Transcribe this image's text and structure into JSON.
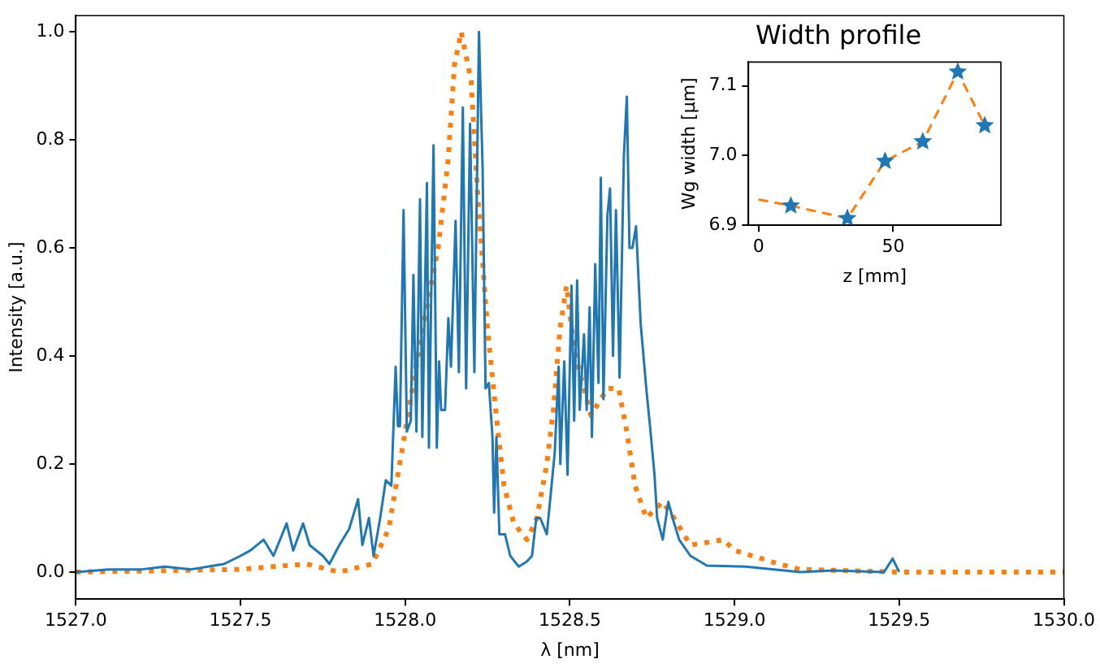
{
  "chart_data": [
    {
      "type": "line",
      "xlabel": "λ [nm]",
      "ylabel": "Intensity [a.u.]",
      "xlim": [
        1527,
        1530
      ],
      "ylim": [
        -0.05,
        1.03
      ],
      "xticks": [
        {
          "value": 1527,
          "label": "1527.0"
        },
        {
          "value": 1527.5,
          "label": "1527.5"
        },
        {
          "value": 1528,
          "label": "1528.0"
        },
        {
          "value": 1528.5,
          "label": "1528.5"
        },
        {
          "value": 1529,
          "label": "1529.0"
        },
        {
          "value": 1529.5,
          "label": "1529.5"
        },
        {
          "value": 1530,
          "label": "1530.0"
        }
      ],
      "yticks": [
        {
          "value": 0,
          "label": "0.0"
        },
        {
          "value": 0.2,
          "label": "0.2"
        },
        {
          "value": 0.4,
          "label": "0.4"
        },
        {
          "value": 0.6,
          "label": "0.6"
        },
        {
          "value": 0.8,
          "label": "0.8"
        },
        {
          "value": 1,
          "label": "1.0"
        }
      ],
      "grid": false,
      "legend": false,
      "series": [
        {
          "color": "#1f77b4",
          "line_style": "solid",
          "x": [
            1527.0,
            1527.1,
            1527.2,
            1527.27,
            1527.35,
            1527.45,
            1527.5,
            1527.53,
            1527.57,
            1527.6,
            1527.64,
            1527.66,
            1527.69,
            1527.71,
            1527.75,
            1527.77,
            1527.8,
            1527.83,
            1527.857,
            1527.87,
            1527.89,
            1527.904,
            1527.924,
            1527.941,
            1527.958,
            1527.971,
            1527.978,
            1527.984,
            1527.995,
            1528.005,
            1528.017,
            1528.025,
            1528.034,
            1528.045,
            1528.052,
            1528.066,
            1528.072,
            1528.086,
            1528.096,
            1528.103,
            1528.109,
            1528.121,
            1528.131,
            1528.139,
            1528.153,
            1528.163,
            1528.175,
            1528.185,
            1528.197,
            1528.21,
            1528.224,
            1528.235,
            1528.244,
            1528.254,
            1528.265,
            1528.27,
            1528.277,
            1528.286,
            1528.303,
            1528.319,
            1528.345,
            1528.37,
            1528.385,
            1528.398,
            1528.41,
            1528.43,
            1528.454,
            1528.466,
            1528.471,
            1528.483,
            1528.493,
            1528.505,
            1528.513,
            1528.522,
            1528.53,
            1528.543,
            1528.551,
            1528.56,
            1528.567,
            1528.577,
            1528.587,
            1528.594,
            1528.602,
            1528.614,
            1528.622,
            1528.631,
            1528.64,
            1528.651,
            1528.664,
            1528.673,
            1528.681,
            1528.69,
            1528.701,
            1528.715,
            1528.732,
            1528.745,
            1528.757,
            1528.765,
            1528.782,
            1528.799,
            1528.812,
            1528.832,
            1528.866,
            1528.916,
            1529.034,
            1529.2,
            1529.3,
            1529.454,
            1529.48,
            1529.5
          ],
          "values": [
            0.0,
            0.005,
            0.005,
            0.01,
            0.005,
            0.015,
            0.03,
            0.04,
            0.06,
            0.03,
            0.09,
            0.04,
            0.09,
            0.05,
            0.03,
            0.015,
            0.05,
            0.08,
            0.135,
            0.05,
            0.1,
            0.03,
            0.1,
            0.17,
            0.16,
            0.38,
            0.27,
            0.27,
            0.67,
            0.26,
            0.28,
            0.55,
            0.26,
            0.69,
            0.25,
            0.72,
            0.23,
            0.79,
            0.23,
            0.39,
            0.3,
            0.3,
            0.47,
            0.38,
            0.65,
            0.37,
            0.86,
            0.34,
            0.83,
            0.37,
            1.0,
            0.75,
            0.34,
            0.35,
            0.25,
            0.11,
            0.25,
            0.07,
            0.07,
            0.03,
            0.01,
            0.02,
            0.03,
            0.1,
            0.1,
            0.07,
            0.22,
            0.38,
            0.2,
            0.39,
            0.18,
            0.53,
            0.28,
            0.54,
            0.3,
            0.44,
            0.3,
            0.49,
            0.25,
            0.57,
            0.35,
            0.73,
            0.32,
            0.66,
            0.71,
            0.4,
            0.67,
            0.36,
            0.77,
            0.88,
            0.6,
            0.6,
            0.64,
            0.46,
            0.34,
            0.26,
            0.18,
            0.1,
            0.06,
            0.13,
            0.1,
            0.06,
            0.03,
            0.012,
            0.01,
            0.0,
            0.003,
            0.0,
            0.025,
            0.0
          ]
        },
        {
          "color": "#ff7f0e",
          "line_style": "dotted",
          "x": [
            1527.0,
            1527.5,
            1527.7,
            1527.8,
            1527.9,
            1527.95,
            1528.0,
            1528.05,
            1528.1,
            1528.13,
            1528.15,
            1528.17,
            1528.2,
            1528.22,
            1528.25,
            1528.28,
            1528.3,
            1528.33,
            1528.37,
            1528.4,
            1528.43,
            1528.45,
            1528.47,
            1528.49,
            1528.513,
            1528.53,
            1528.564,
            1528.614,
            1528.648,
            1528.673,
            1528.698,
            1528.732,
            1528.782,
            1528.816,
            1528.866,
            1528.967,
            1529.0,
            1529.135,
            1529.2,
            1529.5,
            1530.0
          ],
          "values": [
            0.0,
            0.005,
            0.015,
            0.0,
            0.015,
            0.08,
            0.26,
            0.44,
            0.6,
            0.76,
            0.94,
            1.0,
            0.91,
            0.7,
            0.45,
            0.27,
            0.16,
            0.09,
            0.06,
            0.1,
            0.2,
            0.3,
            0.45,
            0.53,
            0.41,
            0.37,
            0.29,
            0.34,
            0.34,
            0.26,
            0.16,
            0.1,
            0.13,
            0.1,
            0.05,
            0.06,
            0.04,
            0.015,
            0.005,
            0.0,
            0.0
          ]
        }
      ]
    },
    {
      "type": "line",
      "title": "Width profile",
      "xlabel": "z [mm]",
      "ylabel": "Wg width [μm]",
      "xlim": [
        -3.7,
        90
      ],
      "ylim": [
        6.9,
        7.134
      ],
      "xticks": [
        0,
        50
      ],
      "yticks": [
        {
          "value": 6.9,
          "label": "6.9"
        },
        {
          "value": 7.0,
          "label": "7.0"
        },
        {
          "value": 7.1,
          "label": "7.1"
        }
      ],
      "grid": false,
      "legend": false,
      "series": [
        {
          "color": "#ff7f0e",
          "line_style": "dashed",
          "marker": "none",
          "x": [
            0,
            12,
            33,
            47,
            61,
            74,
            84
          ],
          "values": [
            6.937,
            6.928,
            6.91,
            6.992,
            7.02,
            7.12,
            7.043
          ]
        },
        {
          "type": "scatter",
          "color": "#1f77b4",
          "marker": "star",
          "x": [
            12,
            33,
            47,
            61,
            74,
            84
          ],
          "values": [
            6.928,
            6.91,
            6.992,
            7.02,
            7.12,
            7.043
          ]
        }
      ]
    }
  ]
}
